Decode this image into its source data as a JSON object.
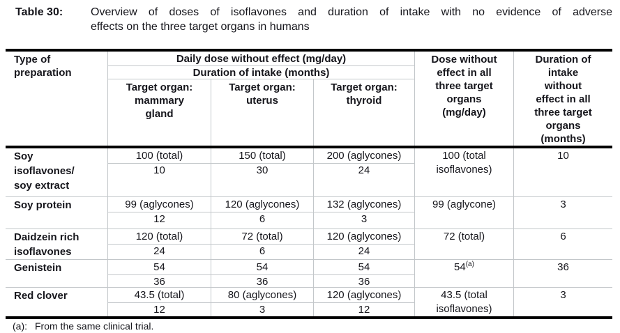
{
  "caption": {
    "label": "Table 30:",
    "line1": "Overview of doses of isoflavones and duration of intake with no evidence of adverse",
    "line2": "effects on the three target organs in humans"
  },
  "table": {
    "header": {
      "type_of_preparation": "Type of preparation",
      "daily_dose": "Daily dose without effect (mg/day)",
      "duration_of_intake": "Duration of intake (months)",
      "target_mammary": "Target organ: mammary gland",
      "target_uterus": "Target organ: uterus",
      "target_thyroid": "Target organ: thyroid",
      "dose_all_organs": "Dose without effect in all three target organs (mg/day)",
      "duration_all_organs": "Duration of intake without effect in all three target organs (months)"
    },
    "rows": [
      {
        "preparation": "Soy isoflavones/ soy extract",
        "mammary_dose": "100 (total)",
        "mammary_months": "10",
        "uterus_dose": "150 (total)",
        "uterus_months": "30",
        "thyroid_dose": "200 (aglycones)",
        "thyroid_months": "24",
        "dose_all": "100 (total isoflavones)",
        "dose_all_sup": "",
        "duration_all": "10"
      },
      {
        "preparation": "Soy protein",
        "mammary_dose": "99 (aglycones)",
        "mammary_months": "12",
        "uterus_dose": "120 (aglycones)",
        "uterus_months": "6",
        "thyroid_dose": "132 (aglycones)",
        "thyroid_months": "3",
        "dose_all": "99 (aglycone)",
        "dose_all_sup": "",
        "duration_all": "3"
      },
      {
        "preparation": "Daidzein rich isoflavones",
        "mammary_dose": "120 (total)",
        "mammary_months": "24",
        "uterus_dose": "72 (total)",
        "uterus_months": "6",
        "thyroid_dose": "120 (aglycones)",
        "thyroid_months": "24",
        "dose_all": "72 (total)",
        "dose_all_sup": "",
        "duration_all": "6"
      },
      {
        "preparation": "Genistein",
        "mammary_dose": "54",
        "mammary_months": "36",
        "uterus_dose": "54",
        "uterus_months": "36",
        "thyroid_dose": "54",
        "thyroid_months": "36",
        "dose_all": "54",
        "dose_all_sup": "(a)",
        "duration_all": "36"
      },
      {
        "preparation": "Red clover",
        "mammary_dose": "43.5 (total)",
        "mammary_months": "12",
        "uterus_dose": "80 (aglycones)",
        "uterus_months": "3",
        "thyroid_dose": "120 (aglycones)",
        "thyroid_months": "12",
        "dose_all": "43.5 (total isoflavones)",
        "dose_all_sup": "",
        "duration_all": "3"
      }
    ]
  },
  "footnote": {
    "label": "(a):",
    "text": "From the same clinical trial."
  },
  "colors": {
    "text": "#16161c",
    "thick_border": "#000000",
    "thin_border": "#c3c7ca",
    "background": "#ffffff"
  }
}
